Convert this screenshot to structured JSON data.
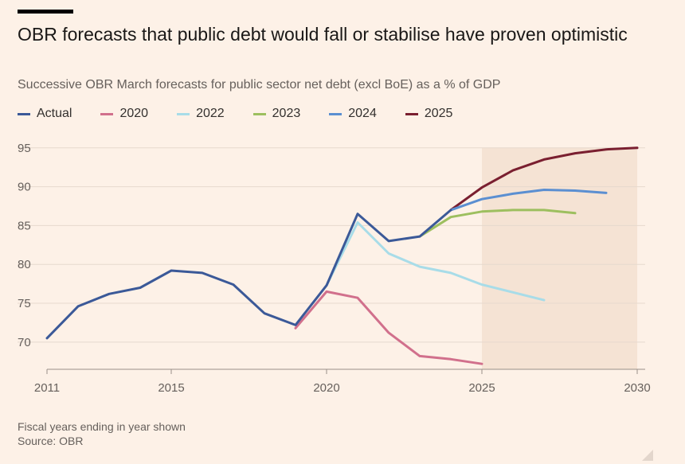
{
  "chart_data": {
    "type": "line",
    "title": "OBR forecasts that public debt would fall or stabilise have proven optimistic",
    "subtitle": "Successive OBR March forecasts for public sector net debt (excl BoE) as a % of GDP",
    "xlabel": "",
    "ylabel": "",
    "xlim": [
      2011,
      2030
    ],
    "ylim": [
      66.5,
      96
    ],
    "x_ticks": [
      "2011",
      "2015",
      "2020",
      "2025",
      "2030"
    ],
    "y_ticks": [
      "70",
      "75",
      "80",
      "85",
      "90",
      "95"
    ],
    "forecast_shade_range": [
      2025,
      2030
    ],
    "series": [
      {
        "name": "Actual",
        "color": "#3b5998",
        "x": [
          2011,
          2012,
          2013,
          2014,
          2015,
          2016,
          2017,
          2018,
          2019,
          2020,
          2021,
          2022,
          2023,
          2024
        ],
        "values": [
          70.5,
          74.6,
          76.2,
          77.0,
          79.2,
          78.9,
          77.4,
          73.7,
          72.2,
          77.3,
          86.5,
          83.0,
          83.6,
          87.0
        ]
      },
      {
        "name": "2020",
        "color": "#d1708c",
        "x": [
          2019,
          2020,
          2021,
          2022,
          2023,
          2024,
          2025
        ],
        "values": [
          71.8,
          76.5,
          75.7,
          71.2,
          68.2,
          67.8,
          67.2
        ]
      },
      {
        "name": "2022",
        "color": "#a8dce8",
        "x": [
          2020,
          2021,
          2022,
          2023,
          2024,
          2025,
          2026,
          2027
        ],
        "values": [
          77.3,
          85.4,
          81.4,
          79.7,
          78.9,
          77.4,
          76.4,
          75.4
        ]
      },
      {
        "name": "2023",
        "color": "#9dbf5f",
        "x": [
          2023,
          2024,
          2025,
          2026,
          2027,
          2028
        ],
        "values": [
          83.6,
          86.1,
          86.8,
          87.0,
          87.0,
          86.6
        ]
      },
      {
        "name": "2024",
        "color": "#5b8fd1",
        "x": [
          2024,
          2025,
          2026,
          2027,
          2028,
          2029
        ],
        "values": [
          87.0,
          88.4,
          89.1,
          89.6,
          89.5,
          89.2
        ]
      },
      {
        "name": "2025",
        "color": "#7a1f30",
        "x": [
          2024,
          2025,
          2026,
          2027,
          2028,
          2029,
          2030
        ],
        "values": [
          87.0,
          89.9,
          92.1,
          93.5,
          94.3,
          94.8,
          95.0
        ]
      }
    ]
  },
  "footnote": {
    "line1": "Fiscal years ending in year shown",
    "line2": "Source: OBR"
  }
}
